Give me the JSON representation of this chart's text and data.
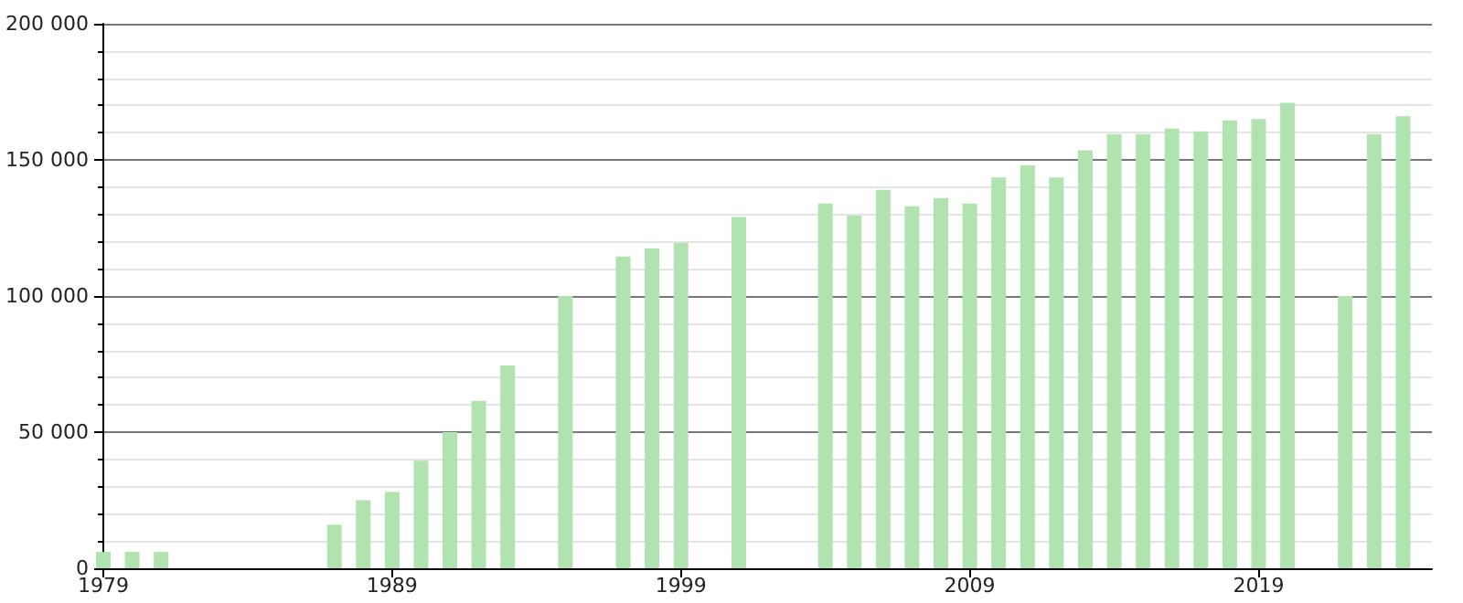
{
  "chart_data": {
    "type": "bar",
    "color": "#b0e3b0",
    "x": [
      1979,
      1980,
      1981,
      1987,
      1988,
      1989,
      1990,
      1991,
      1992,
      1993,
      1995,
      1997,
      1998,
      1999,
      2001,
      2004,
      2005,
      2006,
      2007,
      2008,
      2009,
      2010,
      2011,
      2012,
      2013,
      2014,
      2015,
      2016,
      2017,
      2018,
      2019,
      2020,
      2022,
      2023,
      2024
    ],
    "values": [
      6000,
      6000,
      6000,
      16000,
      25000,
      28000,
      39500,
      50000,
      61500,
      74500,
      100000,
      114500,
      117500,
      119500,
      129000,
      134000,
      129500,
      139000,
      133000,
      136000,
      134000,
      143500,
      148000,
      143500,
      153500,
      159500,
      159500,
      161500,
      160500,
      164500,
      165000,
      171000,
      100000,
      159500,
      166000
    ],
    "xlim": [
      1979,
      2025
    ],
    "xticks": [
      1979,
      1989,
      1999,
      2009,
      2019
    ],
    "ylim": [
      0,
      200000
    ],
    "yticks": [
      0,
      {
        "value": 50000,
        "label": "50 000"
      },
      {
        "value": 100000,
        "label": "100 000"
      },
      {
        "value": 150000,
        "label": "150 000"
      },
      {
        "value": 200000,
        "label": "200 000"
      }
    ],
    "grid": "y"
  }
}
